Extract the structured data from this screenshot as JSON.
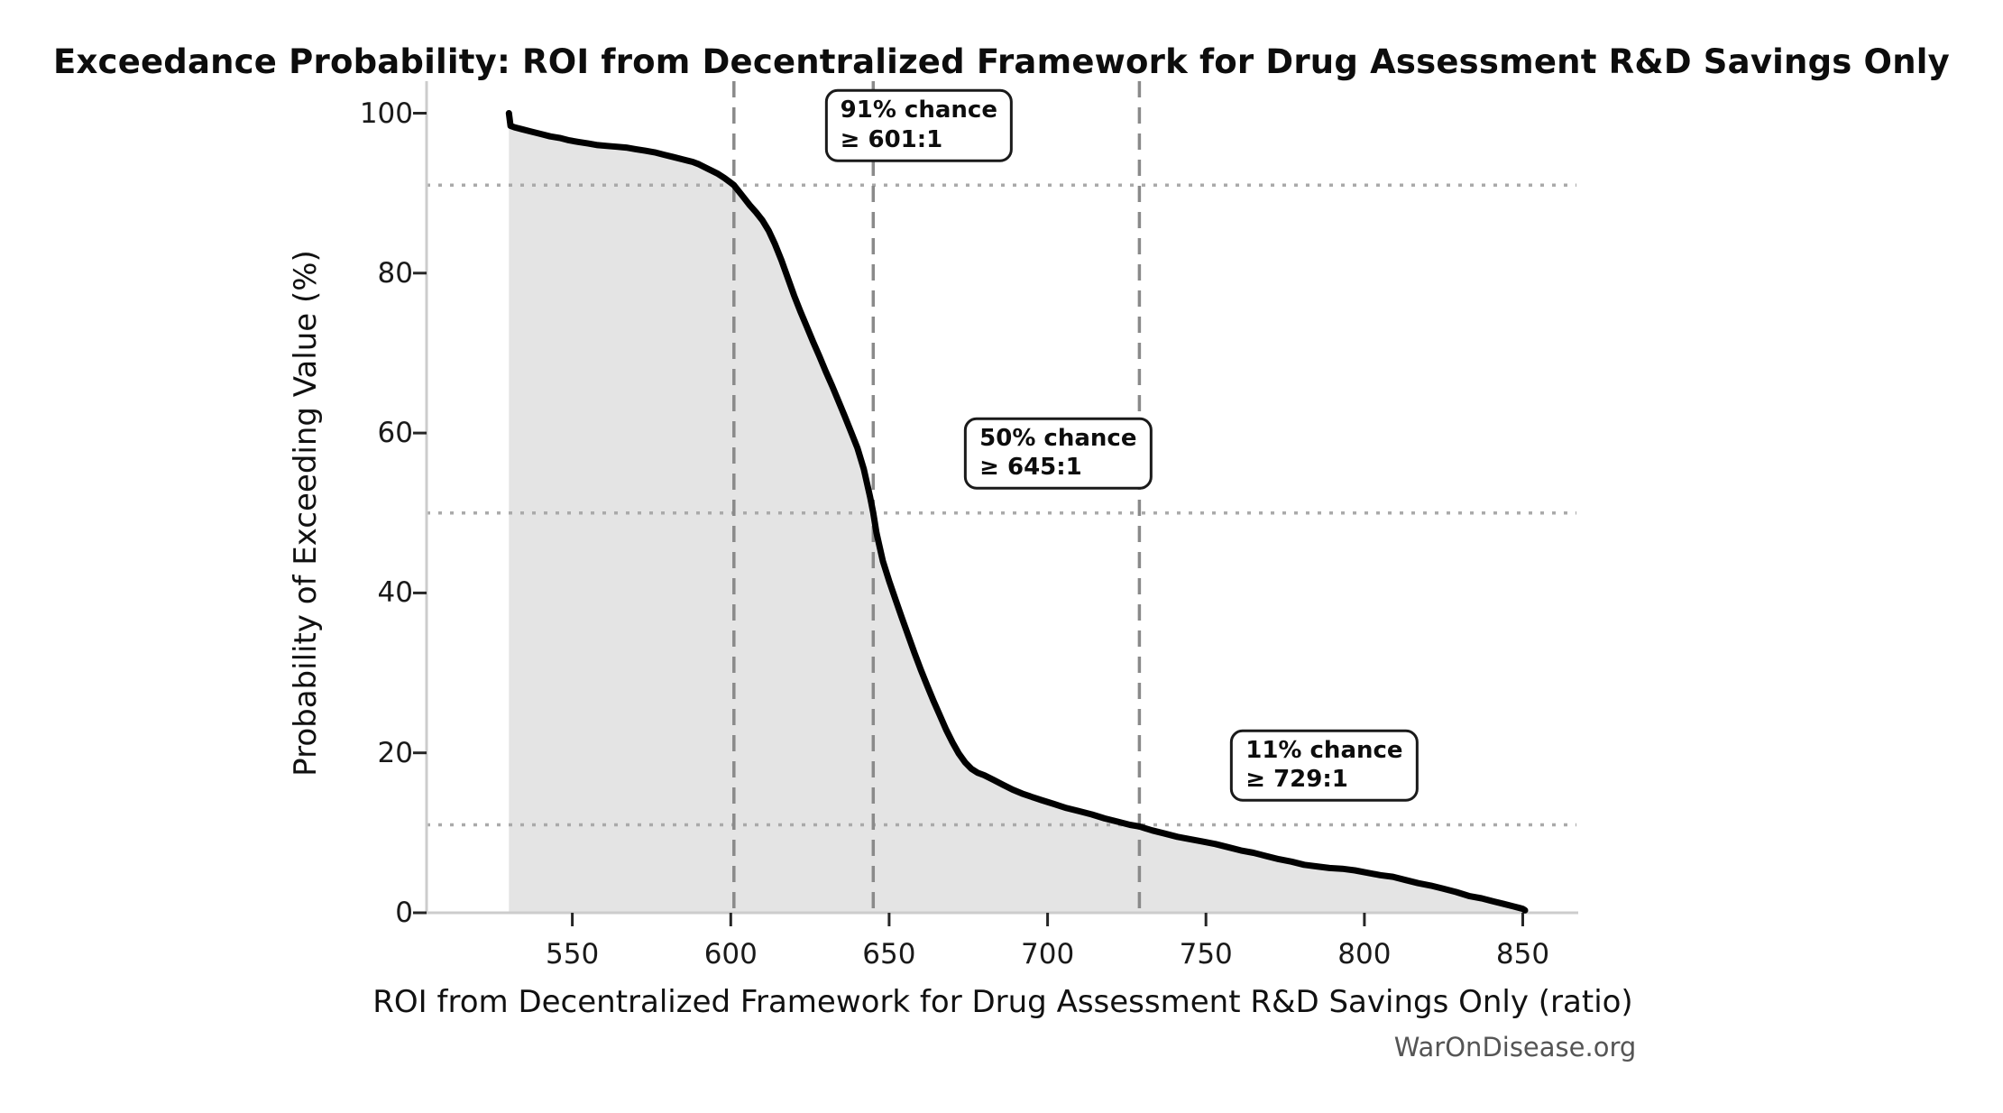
{
  "figure": {
    "title": "Exceedance Probability: ROI from Decentralized Framework for Drug Assessment R&D Savings Only",
    "watermark": "WarOnDisease.org"
  },
  "chart_data": {
    "type": "line",
    "subtype": "exceedance-probability-curve",
    "title": "Exceedance Probability: ROI from Decentralized Framework for Drug Assessment R&D Savings Only",
    "xlabel": "ROI from Decentralized Framework for Drug Assessment R&D Savings Only (ratio)",
    "ylabel": "Probability of Exceeding Value (%)",
    "xlim": [
      504,
      867.5
    ],
    "ylim": [
      0,
      104
    ],
    "x_ticks": [
      550,
      600,
      650,
      700,
      750,
      800,
      850
    ],
    "y_ticks": [
      0,
      20,
      40,
      60,
      80,
      100
    ],
    "grid": "off",
    "legend": "none",
    "area_fill": true,
    "colors": {
      "curve": "#000000",
      "area_fill": "#e4e4e4",
      "dashed_reference": "#8a8a8a",
      "dotted_reference": "#aaaaaa",
      "spine": "#cccccc",
      "tick": "#262626",
      "annotation_border": "#1a1a1a",
      "watermark": "#555555"
    },
    "series": [
      {
        "name": "Exceedance probability of ROI",
        "points": [
          [
            530,
            100
          ],
          [
            530.5,
            98.4
          ],
          [
            532,
            98.2
          ],
          [
            534,
            98.0
          ],
          [
            537,
            97.7
          ],
          [
            540,
            97.4
          ],
          [
            543,
            97.1
          ],
          [
            546,
            96.9
          ],
          [
            549,
            96.6
          ],
          [
            552,
            96.4
          ],
          [
            555,
            96.2
          ],
          [
            558,
            96.0
          ],
          [
            561,
            95.9
          ],
          [
            564,
            95.8
          ],
          [
            567,
            95.7
          ],
          [
            570,
            95.5
          ],
          [
            573,
            95.3
          ],
          [
            576,
            95.1
          ],
          [
            579,
            94.8
          ],
          [
            582,
            94.5
          ],
          [
            585,
            94.2
          ],
          [
            588,
            93.9
          ],
          [
            590,
            93.6
          ],
          [
            592,
            93.2
          ],
          [
            594,
            92.8
          ],
          [
            596,
            92.4
          ],
          [
            598,
            91.9
          ],
          [
            600,
            91.3
          ],
          [
            601,
            91.0
          ],
          [
            602,
            90.5
          ],
          [
            604,
            89.5
          ],
          [
            606,
            88.5
          ],
          [
            608,
            87.6
          ],
          [
            610,
            86.6
          ],
          [
            612,
            85.3
          ],
          [
            614,
            83.6
          ],
          [
            616,
            81.6
          ],
          [
            618,
            79.4
          ],
          [
            620,
            77.2
          ],
          [
            622,
            75.2
          ],
          [
            624,
            73.3
          ],
          [
            626,
            71.4
          ],
          [
            628,
            69.6
          ],
          [
            630,
            67.7
          ],
          [
            632,
            65.9
          ],
          [
            634,
            64.0
          ],
          [
            636,
            62.1
          ],
          [
            638,
            60.1
          ],
          [
            640,
            58.1
          ],
          [
            642,
            55.5
          ],
          [
            644,
            52.0
          ],
          [
            645,
            50.0
          ],
          [
            646,
            47.5
          ],
          [
            648,
            44.0
          ],
          [
            650,
            41.5
          ],
          [
            652,
            39.2
          ],
          [
            654,
            36.9
          ],
          [
            656,
            34.7
          ],
          [
            658,
            32.5
          ],
          [
            660,
            30.4
          ],
          [
            662,
            28.4
          ],
          [
            664,
            26.5
          ],
          [
            666,
            24.7
          ],
          [
            668,
            22.9
          ],
          [
            670,
            21.3
          ],
          [
            672,
            19.9
          ],
          [
            674,
            18.8
          ],
          [
            676,
            18.0
          ],
          [
            678,
            17.5
          ],
          [
            680,
            17.2
          ],
          [
            683,
            16.6
          ],
          [
            686,
            16.0
          ],
          [
            689,
            15.4
          ],
          [
            692,
            14.9
          ],
          [
            695,
            14.5
          ],
          [
            698,
            14.1
          ],
          [
            702,
            13.6
          ],
          [
            706,
            13.1
          ],
          [
            710,
            12.7
          ],
          [
            714,
            12.3
          ],
          [
            718,
            11.8
          ],
          [
            722,
            11.4
          ],
          [
            726,
            11.0
          ],
          [
            729,
            10.8
          ],
          [
            733,
            10.3
          ],
          [
            737,
            9.9
          ],
          [
            741,
            9.5
          ],
          [
            745,
            9.2
          ],
          [
            749,
            8.9
          ],
          [
            753,
            8.6
          ],
          [
            757,
            8.2
          ],
          [
            761,
            7.8
          ],
          [
            765,
            7.5
          ],
          [
            769,
            7.1
          ],
          [
            773,
            6.7
          ],
          [
            777,
            6.4
          ],
          [
            781,
            6.0
          ],
          [
            785,
            5.8
          ],
          [
            789,
            5.6
          ],
          [
            793,
            5.5
          ],
          [
            797,
            5.3
          ],
          [
            801,
            5.0
          ],
          [
            805,
            4.7
          ],
          [
            809,
            4.5
          ],
          [
            813,
            4.1
          ],
          [
            817,
            3.7
          ],
          [
            821,
            3.4
          ],
          [
            825,
            3.0
          ],
          [
            829,
            2.6
          ],
          [
            833,
            2.1
          ],
          [
            837,
            1.8
          ],
          [
            841,
            1.4
          ],
          [
            844,
            1.1
          ],
          [
            847,
            0.8
          ],
          [
            849,
            0.6
          ],
          [
            850,
            0.5
          ],
          [
            850.7,
            0.3
          ]
        ]
      }
    ],
    "reference_lines": {
      "vertical_dashed_x": [
        601,
        645,
        729
      ],
      "horizontal_dotted_probability": [
        91,
        50,
        11
      ]
    },
    "annotations": [
      {
        "lines": [
          "91% chance",
          "≥ 601:1"
        ],
        "x": 601,
        "probability": 91
      },
      {
        "lines": [
          "50% chance",
          "≥ 645:1"
        ],
        "x": 645,
        "probability": 50
      },
      {
        "lines": [
          "11% chance",
          "≥ 729:1"
        ],
        "x": 729,
        "probability": 11
      }
    ]
  }
}
